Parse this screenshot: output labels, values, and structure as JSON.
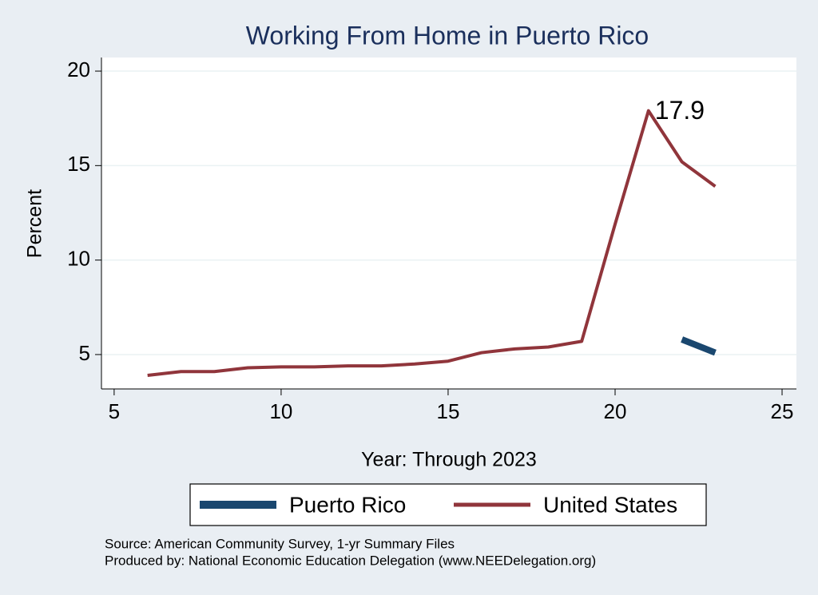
{
  "chart_data": {
    "type": "line",
    "title": "Working From Home in Puerto Rico",
    "x_label": "Year: Through 2023",
    "y_label": "Percent",
    "x": [
      6,
      7,
      8,
      9,
      10,
      11,
      12,
      13,
      14,
      15,
      16,
      17,
      18,
      19,
      20,
      21,
      22,
      23
    ],
    "series": [
      {
        "name": "Puerto Rico",
        "color": "#1a476f",
        "values": [
          null,
          null,
          null,
          null,
          null,
          null,
          null,
          null,
          null,
          null,
          null,
          null,
          null,
          null,
          null,
          null,
          5.8,
          5.1
        ]
      },
      {
        "name": "United States",
        "color": "#90353b",
        "values": [
          3.9,
          4.1,
          4.1,
          4.3,
          4.35,
          4.35,
          4.4,
          4.4,
          4.5,
          4.65,
          5.1,
          5.3,
          5.4,
          5.7,
          11.9,
          17.9,
          15.2,
          13.9
        ],
        "value_labels": [
          null,
          null,
          null,
          null,
          null,
          null,
          null,
          null,
          null,
          null,
          null,
          null,
          null,
          null,
          null,
          "17.9",
          null,
          null
        ]
      }
    ],
    "xlim": [
      4.62,
      25.43
    ],
    "xticks": [
      5,
      10,
      15,
      20,
      25
    ],
    "ylim": [
      3.18,
      20.72
    ],
    "yticks": [
      5,
      10,
      15,
      20
    ],
    "grid": true,
    "legend": "bottom",
    "notes": [
      "Source: American Community Survey, 1-yr Summary Files",
      "Produced by: National Economic Education Delegation (www.NEEDelegation.org)"
    ]
  }
}
